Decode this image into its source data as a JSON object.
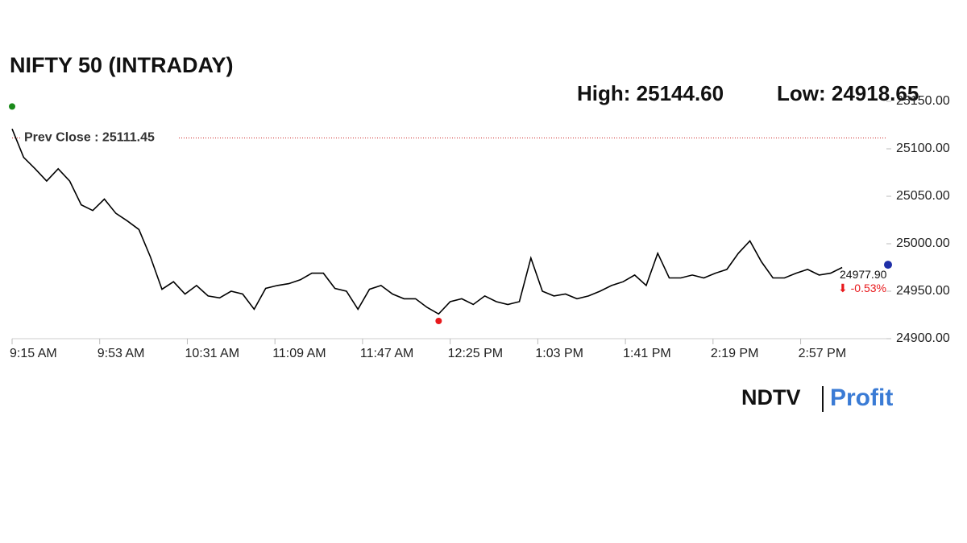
{
  "chart_data": {
    "type": "line",
    "title": "NIFTY 50 (INTRADAY)",
    "high": {
      "value": 25144.6,
      "label": "High: 25144.60"
    },
    "low": {
      "value": 24918.65,
      "label": "Low: 24918.65"
    },
    "prev_close": {
      "value": 25111.45,
      "label": "Prev Close : 25111.45"
    },
    "close": {
      "value": 24977.9,
      "label": "24977.90"
    },
    "change": {
      "value": -0.53,
      "label": "⬇ -0.53%"
    },
    "high_at": "9:15 AM",
    "low_at": "12:20 PM",
    "x": [
      "9:15 AM",
      "9:20 AM",
      "9:25 AM",
      "9:30 AM",
      "9:35 AM",
      "9:40 AM",
      "9:45 AM",
      "9:50 AM",
      "9:55 AM",
      "10:00 AM",
      "10:05 AM",
      "10:10 AM",
      "10:15 AM",
      "10:20 AM",
      "10:25 AM",
      "10:30 AM",
      "10:35 AM",
      "10:40 AM",
      "10:45 AM",
      "10:50 AM",
      "10:55 AM",
      "11:00 AM",
      "11:05 AM",
      "11:10 AM",
      "11:15 AM",
      "11:20 AM",
      "11:25 AM",
      "11:30 AM",
      "11:35 AM",
      "11:40 AM",
      "11:45 AM",
      "11:50 AM",
      "11:55 AM",
      "12:00 PM",
      "12:05 PM",
      "12:10 PM",
      "12:15 PM",
      "12:20 PM",
      "12:25 PM",
      "12:30 PM",
      "12:35 PM",
      "12:40 PM",
      "12:45 PM",
      "12:50 PM",
      "12:55 PM",
      "1:00 PM",
      "1:05 PM",
      "1:10 PM",
      "1:15 PM",
      "1:20 PM",
      "1:25 PM",
      "1:30 PM",
      "1:35 PM",
      "1:40 PM",
      "1:45 PM",
      "1:50 PM",
      "1:55 PM",
      "2:00 PM",
      "2:05 PM",
      "2:10 PM",
      "2:15 PM",
      "2:20 PM",
      "2:25 PM",
      "2:30 PM",
      "2:35 PM",
      "2:40 PM",
      "2:45 PM",
      "2:50 PM",
      "2:55 PM",
      "3:00 PM",
      "3:05 PM",
      "3:10 PM",
      "3:15 PM"
    ],
    "series": [
      {
        "name": "NIFTY 50",
        "color": "#000000",
        "values": [
          25121,
          25091,
          25079,
          25066,
          25079,
          25066,
          25041,
          25035,
          25047,
          25032,
          25024,
          25015,
          24986,
          24952,
          24960,
          24947,
          24956,
          24945,
          24943,
          24950,
          24947,
          24931,
          24953,
          24956,
          24958,
          24962,
          24969,
          24969,
          24953,
          24950,
          24931,
          24952,
          24956,
          24947,
          24942,
          24942,
          24933,
          24926,
          24939,
          24942,
          24936,
          24945,
          24939,
          24936,
          24939,
          24985,
          24950,
          24945,
          24947,
          24942,
          24945,
          24950,
          24956,
          24960,
          24967,
          24956,
          24990,
          24964,
          24964,
          24967,
          24964,
          24969,
          24973,
          24990,
          25003,
          24981,
          24964,
          24964,
          24969,
          24973,
          24967,
          24969,
          24975
        ]
      }
    ],
    "xlim": [
      "9:15 AM",
      "3:30 PM"
    ],
    "xticks": [
      "9:15 AM",
      "9:53 AM",
      "10:31 AM",
      "11:09 AM",
      "11:47 AM",
      "12:25 PM",
      "1:03 PM",
      "1:41 PM",
      "2:19 PM",
      "2:57 PM"
    ],
    "ylim": [
      24900,
      25150
    ],
    "yticks": [
      {
        "value": 24900,
        "label": "24900.00"
      },
      {
        "value": 24950,
        "label": "24950.00"
      },
      {
        "value": 25000,
        "label": "25000.00"
      },
      {
        "value": 25050,
        "label": "25050.00"
      },
      {
        "value": 25100,
        "label": "25100.00"
      },
      {
        "value": 25150,
        "label": "25150.00"
      }
    ],
    "high_color": "#1a8a1a",
    "low_color": "#e8191c",
    "close_color": "#1f2fa8",
    "prev_close_color": "#cc2222",
    "change_color": "#e8191c"
  },
  "logo": {
    "brand": "NDTV",
    "product": "Profit"
  }
}
